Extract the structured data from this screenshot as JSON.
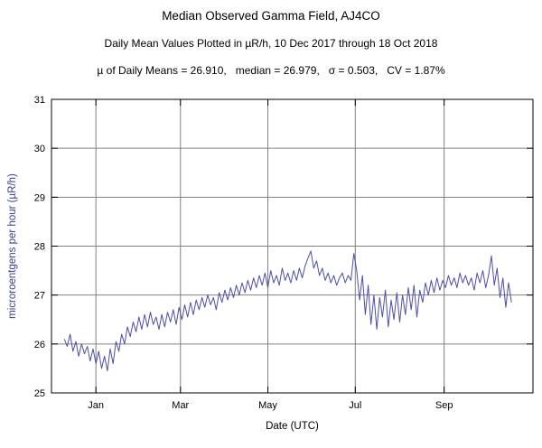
{
  "header": {
    "title": "Median Observed Gamma Field, AJ4CO",
    "subtitle": "Daily Mean Values Plotted in µR/h, 10 Dec 2017 through 18 Oct 2018",
    "stats_line": "µ of Daily Means = 26.910,   median = 26.979,   σ = 0.503,   CV = 1.87%"
  },
  "chart_data": {
    "type": "line",
    "title": "Median Observed Gamma Field, AJ4CO",
    "subtitle": "Daily Mean Values Plotted in µR/h, 10 Dec 2017 through 18 Oct 2018",
    "xlabel": "Date (UTC)",
    "ylabel": "microroentgens per hour (µR/h)",
    "ylim": [
      25,
      31
    ],
    "y_ticks": [
      25,
      26,
      27,
      28,
      29,
      30,
      31
    ],
    "x_domain": {
      "start": "2017-12-01",
      "end": "2018-11-01",
      "days": 336
    },
    "x_ticks": [
      {
        "label": "Jan",
        "day": 31
      },
      {
        "label": "Mar",
        "day": 90
      },
      {
        "label": "May",
        "day": 151
      },
      {
        "label": "Jul",
        "day": 212
      },
      {
        "label": "Sep",
        "day": 274
      }
    ],
    "grid": true,
    "legend": false,
    "colors": {
      "line": "#4e4ea8",
      "grid": "#808080",
      "frame": "#000000",
      "tick_text": "#000000",
      "ylabel_text": "#3a3a9c",
      "xlabel_text": "#000000"
    },
    "stats": {
      "mean": 26.91,
      "median": 26.979,
      "sigma": 0.503,
      "cv_percent": 1.87
    },
    "series": [
      {
        "name": "daily_mean_gamma_uR_per_h",
        "start_day": 9,
        "step_days": 2,
        "values": [
          26.1,
          25.95,
          26.2,
          25.85,
          26.05,
          25.75,
          26.0,
          25.8,
          25.95,
          25.65,
          25.9,
          25.6,
          25.85,
          25.5,
          25.75,
          25.45,
          25.9,
          25.6,
          26.05,
          25.85,
          26.2,
          26.0,
          26.35,
          26.15,
          26.45,
          26.25,
          26.55,
          26.3,
          26.6,
          26.35,
          26.65,
          26.4,
          26.55,
          26.3,
          26.6,
          26.35,
          26.65,
          26.45,
          26.7,
          26.4,
          26.75,
          26.5,
          26.8,
          26.55,
          26.85,
          26.6,
          26.9,
          26.7,
          26.95,
          26.75,
          27.0,
          26.8,
          26.95,
          26.7,
          27.05,
          26.85,
          27.1,
          26.9,
          27.15,
          26.95,
          27.2,
          27.0,
          27.25,
          27.05,
          27.3,
          27.1,
          27.35,
          27.15,
          27.4,
          27.2,
          27.45,
          27.15,
          27.5,
          27.25,
          27.4,
          27.2,
          27.55,
          27.3,
          27.45,
          27.25,
          27.5,
          27.3,
          27.55,
          27.35,
          27.6,
          27.75,
          27.9,
          27.55,
          27.7,
          27.4,
          27.55,
          27.3,
          27.45,
          27.25,
          27.4,
          27.2,
          27.35,
          27.45,
          27.25,
          27.4,
          27.3,
          27.85,
          27.5,
          26.9,
          27.4,
          26.6,
          27.2,
          26.4,
          27.0,
          26.3,
          26.95,
          26.55,
          27.1,
          26.35,
          26.9,
          26.5,
          27.05,
          26.45,
          27.0,
          26.6,
          27.15,
          26.7,
          27.2,
          26.55,
          27.1,
          26.85,
          27.25,
          27.0,
          27.3,
          27.05,
          27.35,
          27.1,
          27.3,
          27.15,
          27.4,
          27.2,
          27.35,
          27.15,
          27.45,
          27.25,
          27.4,
          27.2,
          27.35,
          27.1,
          27.45,
          27.25,
          27.5,
          27.15,
          27.4,
          27.8,
          27.2,
          27.55,
          26.95,
          27.35,
          26.75,
          27.25,
          26.85
        ]
      }
    ]
  }
}
